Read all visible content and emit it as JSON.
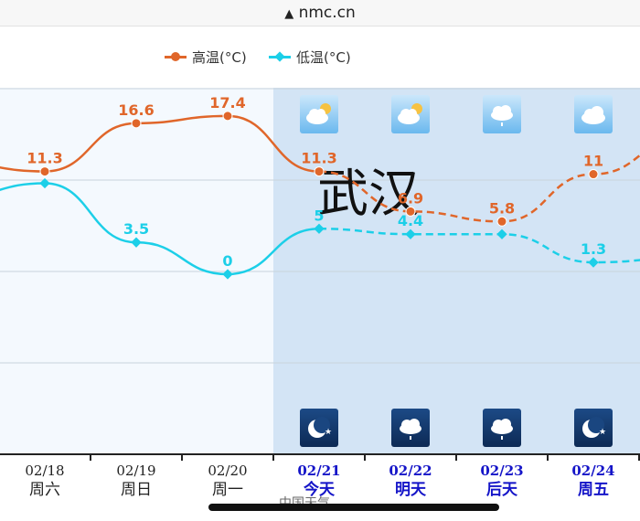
{
  "browser": {
    "url": "nmc.cn",
    "lock_icon": "warning-triangle-icon"
  },
  "legend": {
    "high_label": "高温(°C)",
    "low_label": "低温(°C)",
    "high_color": "#e0662a",
    "low_color": "#1ccfe8"
  },
  "city": "武汉",
  "watermark": "中国天气",
  "chart_data": {
    "type": "line",
    "categories": [
      "02/18",
      "02/19",
      "02/20",
      "02/21",
      "02/22",
      "02/23",
      "02/24"
    ],
    "weekdays": [
      "周六",
      "周日",
      "周一",
      "今天",
      "明天",
      "后天",
      "周五"
    ],
    "highlight_start_index": 3,
    "highlight_color": "#1515c8",
    "series": [
      {
        "name": "高温(°C)",
        "color": "#e0662a",
        "values": [
          11.3,
          16.6,
          17.4,
          11.3,
          6.9,
          5.8,
          11
        ],
        "labels": [
          "11.3",
          "16.6",
          "17.4",
          "11.3",
          "6.9",
          "5.8",
          "11"
        ]
      },
      {
        "name": "低温(°C)",
        "color": "#1ccfe8",
        "values": [
          10.0,
          3.5,
          0,
          5,
          4.4,
          4.4,
          1.3
        ],
        "labels": [
          "",
          "3.5",
          "0",
          "5",
          "4.4",
          "",
          "1.3"
        ]
      }
    ],
    "forecast_from_index": 3,
    "day_icons": [
      "",
      "",
      "",
      "partly-cloudy-icon",
      "partly-cloudy-icon",
      "light-rain-icon",
      "cloudy-icon"
    ],
    "night_icons": [
      "",
      "",
      "",
      "clear-night-icon",
      "light-rain-icon",
      "light-rain-icon",
      "clear-night-icon"
    ],
    "grid": true
  }
}
